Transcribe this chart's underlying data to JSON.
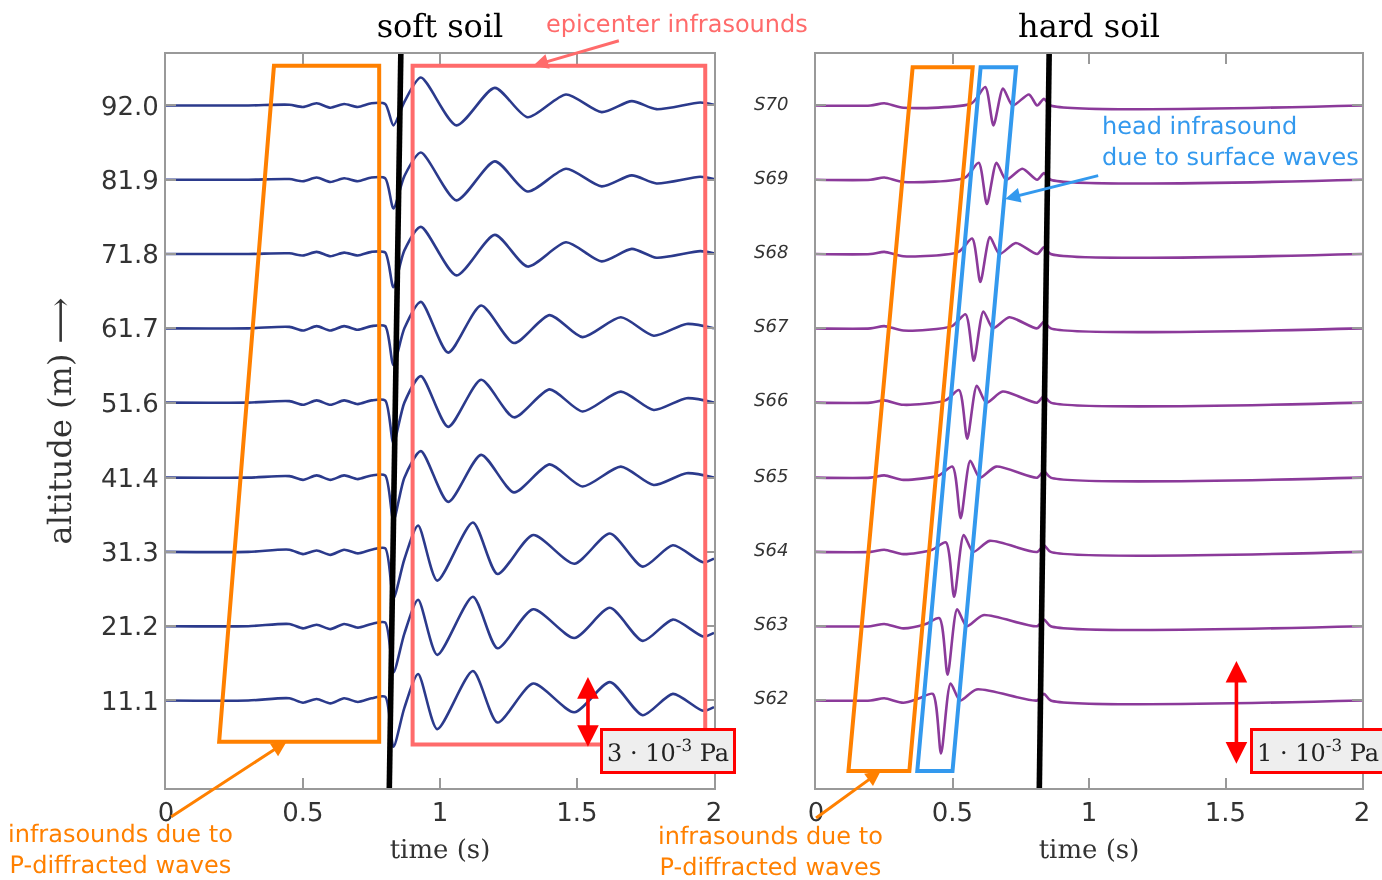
{
  "chart_data": [
    {
      "type": "line",
      "title": "soft soil",
      "xlabel": "time (s)",
      "ylabel": "altitude (m) ⟶",
      "xlim": [
        0,
        2
      ],
      "xticks": [
        0,
        0.5,
        1,
        1.5,
        2
      ],
      "ylim": [
        -0.8,
        99.0
      ],
      "yticks": [
        {
          "value": 11.1,
          "label": "11.1"
        },
        {
          "value": 21.2,
          "label": "21.2"
        },
        {
          "value": 31.3,
          "label": "31.3"
        },
        {
          "value": 41.4,
          "label": "41.4"
        },
        {
          "value": 51.6,
          "label": "51.6"
        },
        {
          "value": 61.7,
          "label": "61.7"
        },
        {
          "value": 71.8,
          "label": "71.8"
        },
        {
          "value": 81.9,
          "label": "81.9"
        },
        {
          "value": 92.0,
          "label": "92.0"
        }
      ],
      "annotations": [
        "epicenter infrasounds",
        "infrasounds due to\nP-diffracted waves",
        "3 · 10$^{-3}$ Pa"
      ],
      "series": [
        {
          "color": "#2b3a8c",
          "x": [
            0,
            0.3,
            0.45,
            0.5,
            0.55,
            0.6,
            0.65,
            0.7,
            0.75,
            0.8,
            0.83,
            0.87,
            0.93,
            1.06,
            1.2,
            1.32,
            1.46,
            1.59,
            1.7,
            1.79,
            1.95,
            2.0
          ],
          "values": [
            92,
            92,
            92.1,
            91.8,
            92.3,
            91.7,
            92.2,
            91.8,
            92.3,
            92.2,
            89.3,
            92.5,
            95.8,
            89.3,
            94.4,
            90.4,
            93.5,
            91.1,
            92.6,
            91.5,
            92.4,
            92.1
          ]
        },
        {
          "color": "#2b3a8c",
          "x": [
            0,
            0.3,
            0.45,
            0.5,
            0.55,
            0.6,
            0.65,
            0.7,
            0.75,
            0.8,
            0.83,
            0.87,
            0.93,
            1.06,
            1.2,
            1.32,
            1.46,
            1.59,
            1.7,
            1.79,
            1.95,
            2.0
          ],
          "values": [
            81.9,
            81.9,
            82.0,
            81.7,
            82.2,
            81.6,
            82.1,
            81.7,
            82.2,
            82.1,
            78.0,
            82.4,
            85.6,
            79.1,
            84.4,
            80.3,
            83.4,
            81.0,
            82.5,
            81.4,
            82.3,
            82.0
          ]
        },
        {
          "color": "#2b3a8c",
          "x": [
            0,
            0.3,
            0.45,
            0.5,
            0.55,
            0.6,
            0.65,
            0.7,
            0.75,
            0.8,
            0.83,
            0.87,
            0.93,
            1.06,
            1.2,
            1.32,
            1.46,
            1.59,
            1.7,
            1.79,
            1.95,
            2.0
          ],
          "values": [
            71.8,
            71.8,
            71.9,
            71.6,
            72.1,
            71.5,
            72.0,
            71.6,
            72.1,
            72.0,
            67.3,
            72.3,
            75.5,
            68.9,
            74.4,
            70.1,
            73.4,
            70.8,
            72.5,
            71.3,
            72.2,
            71.9
          ]
        },
        {
          "color": "#2b3a8c",
          "x": [
            0,
            0.3,
            0.45,
            0.5,
            0.55,
            0.6,
            0.65,
            0.7,
            0.75,
            0.8,
            0.83,
            0.87,
            0.93,
            1.03,
            1.15,
            1.27,
            1.4,
            1.52,
            1.66,
            1.78,
            1.9,
            2.0
          ],
          "values": [
            61.7,
            61.7,
            61.9,
            61.4,
            62.0,
            61.4,
            62.0,
            61.5,
            62.0,
            62.0,
            56.7,
            61.7,
            65.3,
            58.4,
            64.8,
            59.7,
            63.5,
            60.5,
            63.2,
            60.7,
            62.3,
            61.7
          ]
        },
        {
          "color": "#2b3a8c",
          "x": [
            0,
            0.3,
            0.45,
            0.5,
            0.55,
            0.6,
            0.65,
            0.7,
            0.75,
            0.8,
            0.83,
            0.87,
            0.93,
            1.03,
            1.15,
            1.27,
            1.4,
            1.52,
            1.66,
            1.78,
            1.9,
            2.0
          ],
          "values": [
            51.6,
            51.6,
            51.8,
            51.3,
            51.9,
            51.3,
            51.9,
            51.4,
            51.9,
            51.9,
            46.1,
            51.6,
            55.2,
            48.3,
            54.7,
            49.6,
            53.4,
            50.4,
            53.1,
            50.6,
            52.2,
            51.6
          ]
        },
        {
          "color": "#2b3a8c",
          "x": [
            0,
            0.3,
            0.45,
            0.5,
            0.55,
            0.6,
            0.65,
            0.7,
            0.75,
            0.8,
            0.83,
            0.87,
            0.93,
            1.03,
            1.15,
            1.27,
            1.4,
            1.52,
            1.66,
            1.78,
            1.9,
            2.0
          ],
          "values": [
            41.4,
            41.4,
            41.6,
            41.1,
            41.7,
            41.1,
            41.7,
            41.2,
            41.7,
            41.7,
            35.6,
            41.4,
            45.0,
            38.1,
            44.5,
            39.4,
            43.2,
            40.2,
            42.9,
            40.4,
            42.0,
            41.4
          ]
        },
        {
          "color": "#2b3a8c",
          "x": [
            0,
            0.3,
            0.45,
            0.5,
            0.55,
            0.6,
            0.65,
            0.7,
            0.75,
            0.8,
            0.83,
            0.87,
            0.92,
            0.99,
            1.12,
            1.21,
            1.34,
            1.49,
            1.62,
            1.74,
            1.85,
            1.96,
            2.0
          ],
          "values": [
            31.3,
            31.3,
            31.6,
            31.0,
            31.5,
            30.9,
            31.6,
            31.1,
            31.6,
            31.8,
            25.0,
            30.3,
            34.9,
            27.4,
            35.3,
            28.3,
            33.6,
            29.7,
            33.8,
            29.3,
            32.2,
            29.9,
            30.4
          ]
        },
        {
          "color": "#2b3a8c",
          "x": [
            0,
            0.3,
            0.45,
            0.5,
            0.55,
            0.6,
            0.65,
            0.7,
            0.75,
            0.8,
            0.83,
            0.87,
            0.92,
            0.99,
            1.12,
            1.21,
            1.34,
            1.49,
            1.62,
            1.74,
            1.85,
            1.96,
            2.0
          ],
          "values": [
            21.2,
            21.2,
            21.5,
            20.9,
            21.4,
            20.8,
            21.5,
            21.0,
            21.5,
            21.7,
            14.9,
            20.2,
            24.8,
            17.3,
            25.2,
            18.2,
            23.5,
            19.6,
            23.7,
            19.2,
            22.1,
            19.8,
            20.3
          ]
        },
        {
          "color": "#2b3a8c",
          "x": [
            0,
            0.3,
            0.45,
            0.5,
            0.55,
            0.6,
            0.65,
            0.7,
            0.75,
            0.8,
            0.83,
            0.87,
            0.92,
            0.99,
            1.12,
            1.21,
            1.34,
            1.49,
            1.62,
            1.74,
            1.85,
            1.96,
            2.0
          ],
          "values": [
            11.1,
            11.1,
            11.4,
            10.8,
            11.3,
            10.7,
            11.4,
            10.9,
            11.4,
            11.6,
            4.8,
            10.1,
            14.7,
            7.2,
            15.1,
            8.1,
            13.4,
            9.5,
            13.6,
            9.1,
            12.0,
            9.7,
            10.2
          ]
        },
        {
          "color": "#000000",
          "x": [
            0.857,
            0.815
          ],
          "values": [
            99.0,
            -0.8
          ]
        }
      ]
    },
    {
      "type": "line",
      "title": "hard soil",
      "xlabel": "time (s)",
      "xlim": [
        0,
        2
      ],
      "xticks": [
        0,
        0.5,
        1,
        1.5,
        2
      ],
      "ylim": [
        -0.8,
        99.0
      ],
      "yticks": [
        11.1,
        21.2,
        31.3,
        41.4,
        51.6,
        61.7,
        71.8,
        81.9,
        92.0
      ],
      "tick_labels": "x",
      "annotations": [
        "head infrasound\ndue to surface waves",
        "infrasounds due to\nP-diffracted waves",
        "1 · 10$^{-3}$ Pa",
        "S70",
        "S69",
        "S68",
        "S67",
        "S66",
        "S65",
        "S64",
        "S63",
        "S62"
      ],
      "series": [
        {
          "color": "#8b3a9a",
          "x": [
            0,
            0.2,
            0.25,
            0.32,
            0.57,
            0.62,
            0.65,
            0.685,
            0.72,
            0.78,
            0.81,
            0.835,
            0.86,
            2
          ],
          "values": [
            92,
            92,
            92.3,
            91.7,
            92.3,
            94.5,
            89.3,
            94.3,
            92,
            93.5,
            92,
            92.9,
            92,
            92
          ]
        },
        {
          "color": "#8b3a9a",
          "x": [
            0,
            0.2,
            0.25,
            0.32,
            0.546,
            0.596,
            0.626,
            0.661,
            0.696,
            0.756,
            0.81,
            0.835,
            0.86,
            2
          ],
          "values": [
            81.9,
            81.9,
            82.2,
            81.6,
            82.2,
            84.2,
            78.6,
            84.2,
            81.9,
            83.4,
            81.9,
            82.8,
            81.9,
            81.9
          ]
        },
        {
          "color": "#8b3a9a",
          "x": [
            0,
            0.2,
            0.25,
            0.32,
            0.522,
            0.572,
            0.602,
            0.637,
            0.672,
            0.732,
            0.81,
            0.835,
            0.86,
            2
          ],
          "values": [
            71.8,
            71.8,
            72.1,
            71.5,
            72.1,
            73.9,
            68.0,
            74.1,
            71.8,
            73.3,
            71.8,
            72.7,
            71.8,
            71.8
          ]
        },
        {
          "color": "#8b3a9a",
          "x": [
            0,
            0.2,
            0.25,
            0.32,
            0.498,
            0.548,
            0.578,
            0.613,
            0.648,
            0.708,
            0.81,
            0.835,
            0.86,
            2
          ],
          "values": [
            61.7,
            61.7,
            62.0,
            61.4,
            62.0,
            63.6,
            57.3,
            64.0,
            61.7,
            63.2,
            61.7,
            62.6,
            61.7,
            61.7
          ]
        },
        {
          "color": "#8b3a9a",
          "x": [
            0,
            0.2,
            0.25,
            0.32,
            0.474,
            0.524,
            0.554,
            0.589,
            0.624,
            0.684,
            0.81,
            0.835,
            0.86,
            2
          ],
          "values": [
            51.6,
            51.6,
            51.9,
            51.3,
            51.9,
            53.3,
            46.7,
            53.9,
            51.6,
            53.1,
            51.6,
            52.5,
            51.6,
            51.6
          ]
        },
        {
          "color": "#8b3a9a",
          "x": [
            0,
            0.2,
            0.25,
            0.32,
            0.45,
            0.5,
            0.53,
            0.565,
            0.6,
            0.66,
            0.81,
            0.835,
            0.86,
            2
          ],
          "values": [
            41.4,
            41.4,
            41.7,
            41.1,
            41.7,
            42.9,
            35.9,
            43.7,
            41.4,
            42.9,
            41.4,
            42.3,
            41.4,
            41.4
          ]
        },
        {
          "color": "#8b3a9a",
          "x": [
            0,
            0.2,
            0.25,
            0.32,
            0.426,
            0.476,
            0.506,
            0.541,
            0.576,
            0.636,
            0.81,
            0.835,
            0.86,
            2
          ],
          "values": [
            31.3,
            31.3,
            31.6,
            31.0,
            31.6,
            32.6,
            25.2,
            33.6,
            31.3,
            32.8,
            31.3,
            32.2,
            31.3,
            31.3
          ]
        },
        {
          "color": "#8b3a9a",
          "x": [
            0,
            0.2,
            0.25,
            0.32,
            0.402,
            0.452,
            0.482,
            0.517,
            0.552,
            0.612,
            0.81,
            0.835,
            0.86,
            2
          ],
          "values": [
            21.2,
            21.2,
            21.5,
            20.9,
            21.5,
            22.3,
            14.6,
            23.5,
            21.2,
            22.7,
            21.2,
            22.1,
            21.2,
            21.2
          ]
        },
        {
          "color": "#8b3a9a",
          "x": [
            0,
            0.2,
            0.25,
            0.32,
            0.378,
            0.428,
            0.458,
            0.493,
            0.528,
            0.588,
            0.81,
            0.835,
            0.86,
            2
          ],
          "values": [
            11.1,
            11.1,
            11.4,
            10.8,
            11.4,
            12.0,
            3.9,
            13.4,
            11.1,
            12.6,
            11.1,
            12.0,
            11.1,
            11.1
          ]
        },
        {
          "color": "#000000",
          "x": [
            0.854,
            0.818
          ],
          "values": [
            99.0,
            -0.8
          ]
        }
      ]
    }
  ]
}
